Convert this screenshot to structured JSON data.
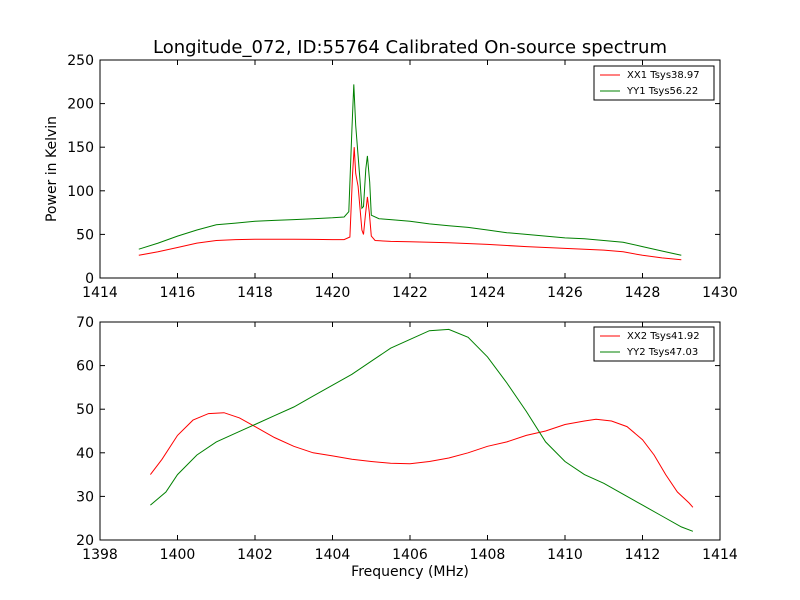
{
  "chart_data": [
    {
      "type": "line",
      "title": "Longitude_072, ID:55764 Calibrated On-source spectrum",
      "xlabel": "",
      "ylabel": "Power in Kelvin",
      "xlim": [
        1414,
        1430
      ],
      "ylim": [
        0,
        250
      ],
      "xticks": [
        "1414",
        "1416",
        "1418",
        "1420",
        "1422",
        "1424",
        "1426",
        "1428",
        "1430"
      ],
      "yticks": [
        "0",
        "50",
        "100",
        "150",
        "200",
        "250"
      ],
      "grid": false,
      "legend_position": "top-right",
      "series": [
        {
          "name": "XX1 Tsys38.97",
          "color": "#ff0000",
          "points": [
            [
              1415.0,
              26
            ],
            [
              1415.5,
              30
            ],
            [
              1416.0,
              35
            ],
            [
              1416.5,
              40
            ],
            [
              1417.0,
              43
            ],
            [
              1417.5,
              44
            ],
            [
              1418.0,
              44.5
            ],
            [
              1418.5,
              44.5
            ],
            [
              1419.0,
              44.5
            ],
            [
              1419.5,
              44.3
            ],
            [
              1420.0,
              44
            ],
            [
              1420.3,
              44
            ],
            [
              1420.45,
              47
            ],
            [
              1420.52,
              120
            ],
            [
              1420.56,
              150
            ],
            [
              1420.6,
              120
            ],
            [
              1420.66,
              105
            ],
            [
              1420.71,
              80
            ],
            [
              1420.76,
              55
            ],
            [
              1420.8,
              50
            ],
            [
              1420.85,
              72
            ],
            [
              1420.9,
              93
            ],
            [
              1420.95,
              75
            ],
            [
              1421.0,
              48
            ],
            [
              1421.1,
              43
            ],
            [
              1421.5,
              42
            ],
            [
              1422.0,
              41.5
            ],
            [
              1423.0,
              40.5
            ],
            [
              1424.0,
              38.5
            ],
            [
              1425.0,
              36
            ],
            [
              1426.0,
              34
            ],
            [
              1427.0,
              32
            ],
            [
              1427.5,
              30
            ],
            [
              1428.0,
              26
            ],
            [
              1428.5,
              23
            ],
            [
              1429.0,
              21
            ]
          ]
        },
        {
          "name": "YY1 Tsys56.22",
          "color": "#008000",
          "points": [
            [
              1415.0,
              33
            ],
            [
              1415.5,
              40
            ],
            [
              1416.0,
              48
            ],
            [
              1416.5,
              55
            ],
            [
              1417.0,
              61
            ],
            [
              1417.5,
              63
            ],
            [
              1418.0,
              65
            ],
            [
              1418.5,
              66
            ],
            [
              1419.0,
              67
            ],
            [
              1419.5,
              68
            ],
            [
              1420.0,
              69
            ],
            [
              1420.3,
              70
            ],
            [
              1420.42,
              76
            ],
            [
              1420.5,
              170
            ],
            [
              1420.55,
              222
            ],
            [
              1420.6,
              175
            ],
            [
              1420.66,
              140
            ],
            [
              1420.71,
              112
            ],
            [
              1420.76,
              80
            ],
            [
              1420.8,
              82
            ],
            [
              1420.86,
              125
            ],
            [
              1420.9,
              140
            ],
            [
              1420.96,
              110
            ],
            [
              1421.0,
              72
            ],
            [
              1421.2,
              68
            ],
            [
              1421.5,
              67
            ],
            [
              1422.0,
              65
            ],
            [
              1422.5,
              62
            ],
            [
              1423.0,
              60
            ],
            [
              1423.5,
              58
            ],
            [
              1424.0,
              55
            ],
            [
              1424.5,
              52
            ],
            [
              1425.0,
              50
            ],
            [
              1425.5,
              48
            ],
            [
              1426.0,
              46
            ],
            [
              1426.5,
              45
            ],
            [
              1427.0,
              43
            ],
            [
              1427.5,
              41
            ],
            [
              1428.0,
              36
            ],
            [
              1428.5,
              31
            ],
            [
              1429.0,
              26
            ]
          ]
        }
      ]
    },
    {
      "type": "line",
      "title": "",
      "xlabel": "Frequency (MHz)",
      "ylabel": "",
      "xlim": [
        1398,
        1414
      ],
      "ylim": [
        20,
        70
      ],
      "xticks": [
        "1398",
        "1400",
        "1402",
        "1404",
        "1406",
        "1408",
        "1410",
        "1412",
        "1414"
      ],
      "yticks": [
        "20",
        "30",
        "40",
        "50",
        "60",
        "70"
      ],
      "grid": false,
      "legend_position": "top-right",
      "series": [
        {
          "name": "XX2 Tsys41.92",
          "color": "#ff0000",
          "points": [
            [
              1399.3,
              35
            ],
            [
              1399.6,
              38.5
            ],
            [
              1400.0,
              44
            ],
            [
              1400.4,
              47.5
            ],
            [
              1400.8,
              49
            ],
            [
              1401.2,
              49.2
            ],
            [
              1401.6,
              48
            ],
            [
              1402.0,
              46
            ],
            [
              1402.5,
              43.5
            ],
            [
              1403.0,
              41.5
            ],
            [
              1403.5,
              40
            ],
            [
              1404.0,
              39.3
            ],
            [
              1404.5,
              38.5
            ],
            [
              1405.0,
              38
            ],
            [
              1405.5,
              37.6
            ],
            [
              1406.0,
              37.5
            ],
            [
              1406.5,
              38
            ],
            [
              1407.0,
              38.8
            ],
            [
              1407.5,
              40
            ],
            [
              1408.0,
              41.5
            ],
            [
              1408.5,
              42.5
            ],
            [
              1409.0,
              44
            ],
            [
              1409.5,
              45
            ],
            [
              1410.0,
              46.5
            ],
            [
              1410.5,
              47.3
            ],
            [
              1410.8,
              47.7
            ],
            [
              1411.2,
              47.3
            ],
            [
              1411.6,
              46
            ],
            [
              1412.0,
              43
            ],
            [
              1412.3,
              39.5
            ],
            [
              1412.6,
              35
            ],
            [
              1412.9,
              31
            ],
            [
              1413.2,
              28.5
            ],
            [
              1413.3,
              27.5
            ]
          ]
        },
        {
          "name": "YY2 Tsys47.03",
          "color": "#008000",
          "points": [
            [
              1399.3,
              28
            ],
            [
              1399.7,
              31
            ],
            [
              1400.0,
              35
            ],
            [
              1400.5,
              39.5
            ],
            [
              1401.0,
              42.5
            ],
            [
              1401.5,
              44.5
            ],
            [
              1402.0,
              46.5
            ],
            [
              1402.5,
              48.5
            ],
            [
              1403.0,
              50.5
            ],
            [
              1403.5,
              53
            ],
            [
              1404.0,
              55.5
            ],
            [
              1404.5,
              58
            ],
            [
              1405.0,
              61
            ],
            [
              1405.5,
              64
            ],
            [
              1406.0,
              66
            ],
            [
              1406.5,
              68
            ],
            [
              1407.0,
              68.3
            ],
            [
              1407.5,
              66.5
            ],
            [
              1408.0,
              62
            ],
            [
              1408.5,
              56
            ],
            [
              1409.0,
              49.5
            ],
            [
              1409.5,
              42.5
            ],
            [
              1410.0,
              38
            ],
            [
              1410.5,
              35
            ],
            [
              1411.0,
              33
            ],
            [
              1411.5,
              30.5
            ],
            [
              1412.0,
              28
            ],
            [
              1412.5,
              25.5
            ],
            [
              1413.0,
              23
            ],
            [
              1413.3,
              22
            ]
          ]
        }
      ]
    }
  ]
}
